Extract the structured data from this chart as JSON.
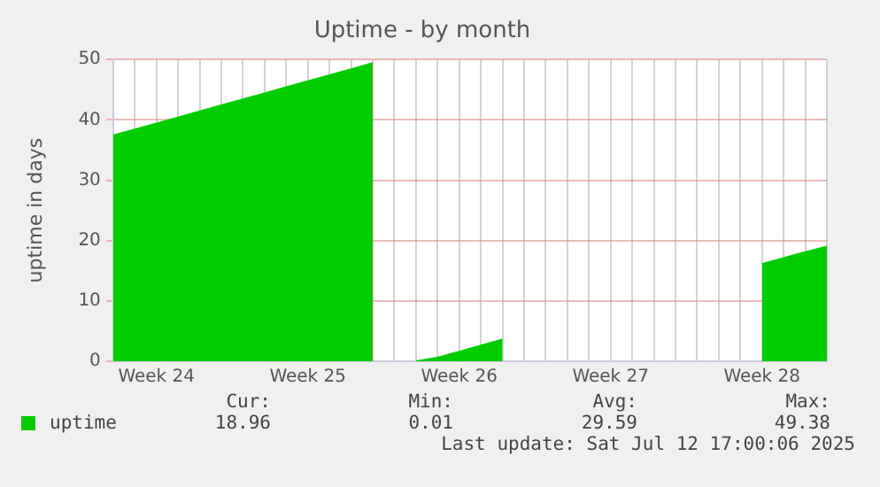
{
  "chart_data": {
    "type": "area",
    "title": "Uptime - by month",
    "ylabel": "uptime in days",
    "categories": [
      null,
      null,
      "Week 24",
      null,
      null,
      null,
      null,
      null,
      null,
      "Week 25",
      null,
      null,
      null,
      null,
      null,
      null,
      "Week 26",
      null,
      null,
      null,
      null,
      null,
      null,
      "Week 27",
      null,
      null,
      null,
      null,
      null,
      null,
      "Week 28",
      null,
      null,
      null
    ],
    "series": [
      {
        "name": "uptime",
        "color": "#00cc00",
        "values": [
          37.4,
          38.4,
          39.4,
          40.4,
          41.4,
          42.4,
          43.4,
          44.4,
          45.4,
          46.4,
          47.4,
          48.4,
          49.4,
          null,
          0.0,
          0.6,
          1.6,
          2.6,
          3.6,
          null,
          null,
          null,
          null,
          null,
          null,
          null,
          null,
          null,
          null,
          null,
          16.1,
          17.1,
          18.1,
          19.0
        ]
      }
    ],
    "ylim": [
      0,
      50
    ],
    "yticks": [
      0,
      10,
      20,
      30,
      40,
      50
    ],
    "grid": true,
    "legend": "bottom left",
    "annotations": [
      "Cur:",
      "Min:",
      "Avg:",
      "Max:",
      "18.96",
      "0.01",
      "29.59",
      "49.38",
      "Last update: Sat Jul 12 17:00:06 2025"
    ]
  }
}
